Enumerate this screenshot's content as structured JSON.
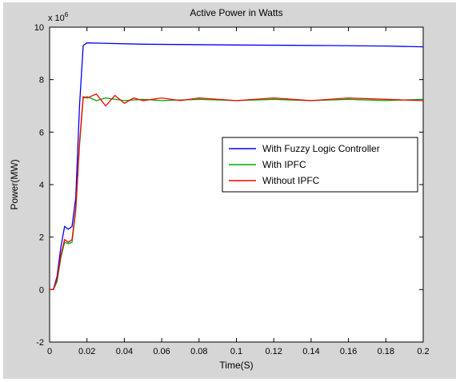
{
  "chart_data": {
    "type": "line",
    "title": "Active Power in Watts",
    "xlabel": "Time(S)",
    "ylabel": "Power(MW)",
    "y_exponent_label": "x 10",
    "y_exponent_power": "6",
    "xlim": [
      0,
      0.2
    ],
    "ylim": [
      -2,
      10
    ],
    "x_ticks": [
      "0",
      "0.02",
      "0.04",
      "0.06",
      "0.08",
      "0.1",
      "0.12",
      "0.14",
      "0.16",
      "0.18",
      "0.2"
    ],
    "y_ticks": [
      "-2",
      "0",
      "2",
      "4",
      "6",
      "8",
      "10"
    ],
    "grid": false,
    "legend_position": "right-middle",
    "series": [
      {
        "name": "With Fuzzy Logic Controller",
        "color": "#0000ff",
        "points": [
          [
            0,
            0
          ],
          [
            0.002,
            0
          ],
          [
            0.004,
            0.5
          ],
          [
            0.006,
            1.6
          ],
          [
            0.008,
            2.4
          ],
          [
            0.01,
            2.3
          ],
          [
            0.012,
            2.4
          ],
          [
            0.014,
            3.5
          ],
          [
            0.016,
            7.0
          ],
          [
            0.018,
            9.3
          ],
          [
            0.02,
            9.4
          ],
          [
            0.05,
            9.35
          ],
          [
            0.1,
            9.32
          ],
          [
            0.15,
            9.3
          ],
          [
            0.18,
            9.28
          ],
          [
            0.2,
            9.25
          ]
        ]
      },
      {
        "name": "With IPFC",
        "color": "#00aa00",
        "points": [
          [
            0,
            0
          ],
          [
            0.002,
            0
          ],
          [
            0.004,
            0.3
          ],
          [
            0.006,
            1.2
          ],
          [
            0.008,
            1.8
          ],
          [
            0.01,
            1.75
          ],
          [
            0.012,
            1.8
          ],
          [
            0.014,
            3.0
          ],
          [
            0.016,
            5.5
          ],
          [
            0.018,
            7.3
          ],
          [
            0.02,
            7.35
          ],
          [
            0.025,
            7.2
          ],
          [
            0.03,
            7.3
          ],
          [
            0.04,
            7.2
          ],
          [
            0.05,
            7.25
          ],
          [
            0.06,
            7.2
          ],
          [
            0.08,
            7.25
          ],
          [
            0.1,
            7.2
          ],
          [
            0.12,
            7.25
          ],
          [
            0.14,
            7.2
          ],
          [
            0.16,
            7.25
          ],
          [
            0.18,
            7.2
          ],
          [
            0.2,
            7.25
          ]
        ]
      },
      {
        "name": "Without IPFC",
        "color": "#ff0000",
        "points": [
          [
            0,
            0
          ],
          [
            0.002,
            0
          ],
          [
            0.004,
            0.4
          ],
          [
            0.006,
            1.3
          ],
          [
            0.008,
            1.9
          ],
          [
            0.01,
            1.8
          ],
          [
            0.012,
            1.9
          ],
          [
            0.014,
            3.1
          ],
          [
            0.016,
            5.6
          ],
          [
            0.018,
            7.35
          ],
          [
            0.02,
            7.3
          ],
          [
            0.025,
            7.45
          ],
          [
            0.03,
            7.0
          ],
          [
            0.035,
            7.4
          ],
          [
            0.04,
            7.1
          ],
          [
            0.045,
            7.3
          ],
          [
            0.05,
            7.2
          ],
          [
            0.06,
            7.3
          ],
          [
            0.07,
            7.2
          ],
          [
            0.08,
            7.3
          ],
          [
            0.1,
            7.2
          ],
          [
            0.12,
            7.3
          ],
          [
            0.14,
            7.2
          ],
          [
            0.16,
            7.3
          ],
          [
            0.18,
            7.25
          ],
          [
            0.2,
            7.2
          ]
        ]
      }
    ]
  }
}
